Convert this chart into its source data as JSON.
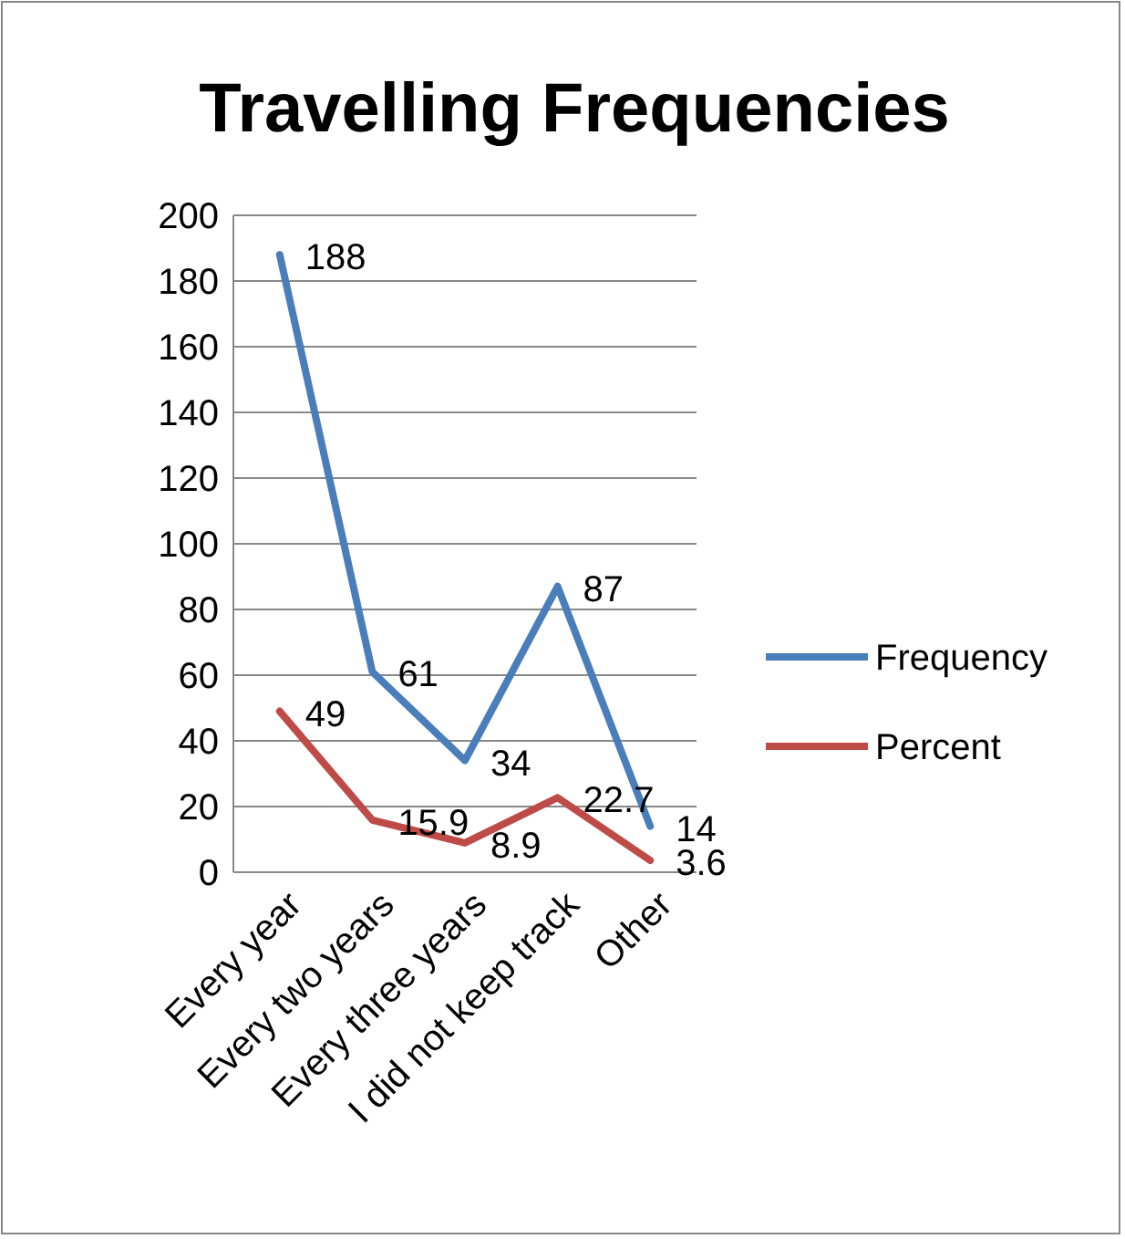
{
  "chart_data": {
    "type": "line",
    "title": "Travelling Frequencies",
    "categories": [
      "Every year",
      "Every two years",
      "Every three years",
      "I did not keep track",
      "Other"
    ],
    "series": [
      {
        "name": "Frequency",
        "color": "#4a7ebb",
        "values": [
          188,
          61,
          34,
          87,
          14
        ]
      },
      {
        "name": "Percent",
        "color": "#be4b48",
        "values": [
          49,
          15.9,
          8.9,
          22.7,
          3.6
        ]
      }
    ],
    "ylim": [
      0,
      200
    ],
    "yticks": [
      0,
      20,
      40,
      60,
      80,
      100,
      120,
      140,
      160,
      180,
      200
    ],
    "grid": "y",
    "legend": "right",
    "data_labels": true,
    "marker": "none",
    "line_style": "solid"
  }
}
